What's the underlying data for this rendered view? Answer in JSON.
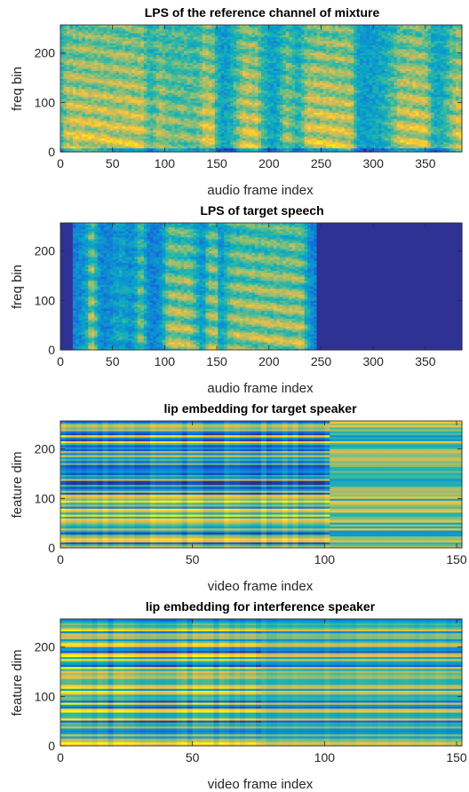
{
  "chart_data": [
    {
      "type": "heatmap",
      "title": "LPS of the reference channel of mixture",
      "xlabel": "audio frame index",
      "ylabel": "freq bin",
      "xlim": [
        0,
        385
      ],
      "ylim": [
        0,
        257
      ],
      "xticks": [
        0,
        50,
        100,
        150,
        200,
        250,
        300,
        350
      ],
      "yticks": [
        0,
        100,
        200
      ],
      "colormap": "parula",
      "colors": [
        "#352a87",
        "#0f5cdd",
        "#1481d6",
        "#06a4ca",
        "#2eb7a4",
        "#87bf77",
        "#d1bb59",
        "#fec832",
        "#f9fb0e"
      ]
    },
    {
      "type": "heatmap",
      "title": "LPS of target speech",
      "xlabel": "audio frame index",
      "ylabel": "freq bin",
      "xlim": [
        0,
        385
      ],
      "ylim": [
        0,
        257
      ],
      "xticks": [
        0,
        50,
        100,
        150,
        200,
        250,
        300,
        350
      ],
      "yticks": [
        0,
        100,
        200
      ],
      "colormap": "parula",
      "colors": [
        "#352a87",
        "#0f5cdd",
        "#1481d6",
        "#06a4ca",
        "#2eb7a4",
        "#87bf77",
        "#d1bb59",
        "#fec832",
        "#f9fb0e"
      ]
    },
    {
      "type": "heatmap",
      "title": "lip embedding for target speaker",
      "xlabel": "video frame index",
      "ylabel": "feature dim",
      "xlim": [
        0,
        152
      ],
      "ylim": [
        0,
        257
      ],
      "xticks": [
        0,
        50,
        100,
        150
      ],
      "yticks": [
        0,
        100,
        200
      ],
      "colormap": "parula",
      "colors": [
        "#352a87",
        "#0f5cdd",
        "#1481d6",
        "#06a4ca",
        "#2eb7a4",
        "#87bf77",
        "#d1bb59",
        "#fec832",
        "#f9fb0e"
      ]
    },
    {
      "type": "heatmap",
      "title": "lip embedding for interference speaker",
      "xlabel": "video frame index",
      "ylabel": "feature dim",
      "xlim": [
        0,
        152
      ],
      "ylim": [
        0,
        257
      ],
      "xticks": [
        0,
        50,
        100,
        150
      ],
      "yticks": [
        0,
        100,
        200
      ],
      "colormap": "parula",
      "colors": [
        "#352a87",
        "#0f5cdd",
        "#1481d6",
        "#06a4ca",
        "#2eb7a4",
        "#87bf77",
        "#d1bb59",
        "#fec832",
        "#f9fb0e"
      ]
    }
  ]
}
